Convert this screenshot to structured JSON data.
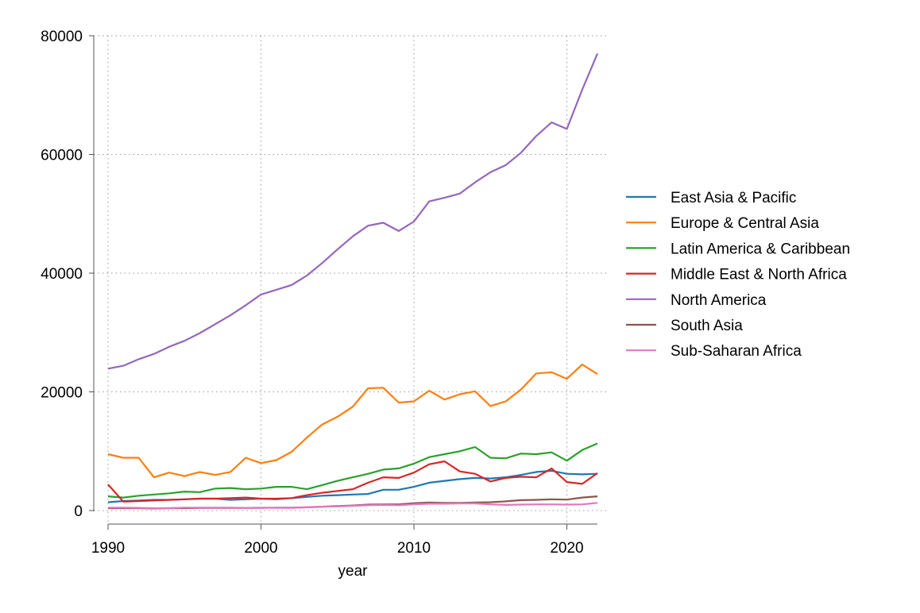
{
  "chart_data": {
    "type": "line",
    "title": "",
    "xlabel": "year",
    "ylabel": "",
    "xlim": [
      1990,
      2022
    ],
    "ylim": [
      0,
      80000
    ],
    "x_ticks": [
      "1990",
      "2000",
      "2010",
      "2020"
    ],
    "y_ticks": [
      "0",
      "20000",
      "40000",
      "60000",
      "80000"
    ],
    "grid": true,
    "legend_position": "right",
    "x": [
      1990,
      1991,
      1992,
      1993,
      1994,
      1995,
      1996,
      1997,
      1998,
      1999,
      2000,
      2001,
      2002,
      2003,
      2004,
      2005,
      2006,
      2007,
      2008,
      2009,
      2010,
      2011,
      2012,
      2013,
      2014,
      2015,
      2016,
      2017,
      2018,
      2019,
      2020,
      2021,
      2022
    ],
    "series": [
      {
        "name": "East Asia & Pacific",
        "color": "#1f77b4",
        "values": [
          1400,
          1600,
          1700,
          1800,
          1800,
          1900,
          2000,
          2000,
          1800,
          1900,
          2000,
          1900,
          2100,
          2300,
          2500,
          2600,
          2700,
          2800,
          3500,
          3500,
          4000,
          4700,
          5000,
          5300,
          5500,
          5400,
          5600,
          6000,
          6500,
          6700,
          6200,
          6100,
          6200
        ]
      },
      {
        "name": "Europe & Central Asia",
        "color": "#ff7f0e",
        "values": [
          9500,
          8900,
          8900,
          5600,
          6400,
          5800,
          6500,
          6000,
          6500,
          8900,
          8000,
          8500,
          9900,
          12300,
          14500,
          15800,
          17500,
          20600,
          20700,
          18200,
          18400,
          20200,
          18700,
          19600,
          20100,
          17600,
          18400,
          20400,
          23100,
          23300,
          22200,
          24600,
          23000
        ]
      },
      {
        "name": "Latin America & Caribbean",
        "color": "#2ca02c",
        "values": [
          2400,
          2200,
          2500,
          2700,
          2900,
          3200,
          3100,
          3700,
          3800,
          3600,
          3700,
          4000,
          4000,
          3600,
          4300,
          5000,
          5600,
          6200,
          6900,
          7100,
          7900,
          9000,
          9500,
          10000,
          10700,
          8900,
          8800,
          9600,
          9500,
          9800,
          8400,
          10200,
          11300
        ]
      },
      {
        "name": "Middle East & North Africa",
        "color": "#d62728",
        "values": [
          4400,
          1500,
          1600,
          1700,
          1800,
          1900,
          2000,
          2000,
          2100,
          2200,
          2000,
          2000,
          2100,
          2600,
          3000,
          3300,
          3600,
          4700,
          5600,
          5500,
          6400,
          7800,
          8300,
          6600,
          6200,
          4900,
          5500,
          5700,
          5600,
          7100,
          4800,
          4500,
          6300
        ]
      },
      {
        "name": "North America",
        "color": "#9467bd",
        "values": [
          23900,
          24400,
          25500,
          26400,
          27600,
          28600,
          29900,
          31400,
          32900,
          34600,
          36400,
          37200,
          38000,
          39600,
          41700,
          44000,
          46200,
          48000,
          48500,
          47100,
          48700,
          52100,
          52700,
          53400,
          55300,
          57000,
          58200,
          60300,
          63100,
          65400,
          64300,
          70900,
          77000
        ]
      },
      {
        "name": "South Asia",
        "color": "#8c564b",
        "values": [
          400,
          400,
          400,
          350,
          400,
          400,
          450,
          450,
          450,
          450,
          450,
          500,
          500,
          550,
          650,
          750,
          850,
          1000,
          1050,
          1050,
          1250,
          1350,
          1300,
          1300,
          1350,
          1400,
          1550,
          1750,
          1800,
          1900,
          1850,
          2200,
          2400
        ]
      },
      {
        "name": "Sub-Saharan Africa",
        "color": "#e377c2",
        "values": [
          500,
          500,
          450,
          400,
          400,
          500,
          500,
          500,
          500,
          450,
          500,
          450,
          450,
          550,
          650,
          700,
          800,
          900,
          950,
          900,
          1050,
          1150,
          1150,
          1200,
          1200,
          1050,
          950,
          1000,
          1050,
          1050,
          1000,
          1050,
          1300
        ]
      }
    ]
  }
}
